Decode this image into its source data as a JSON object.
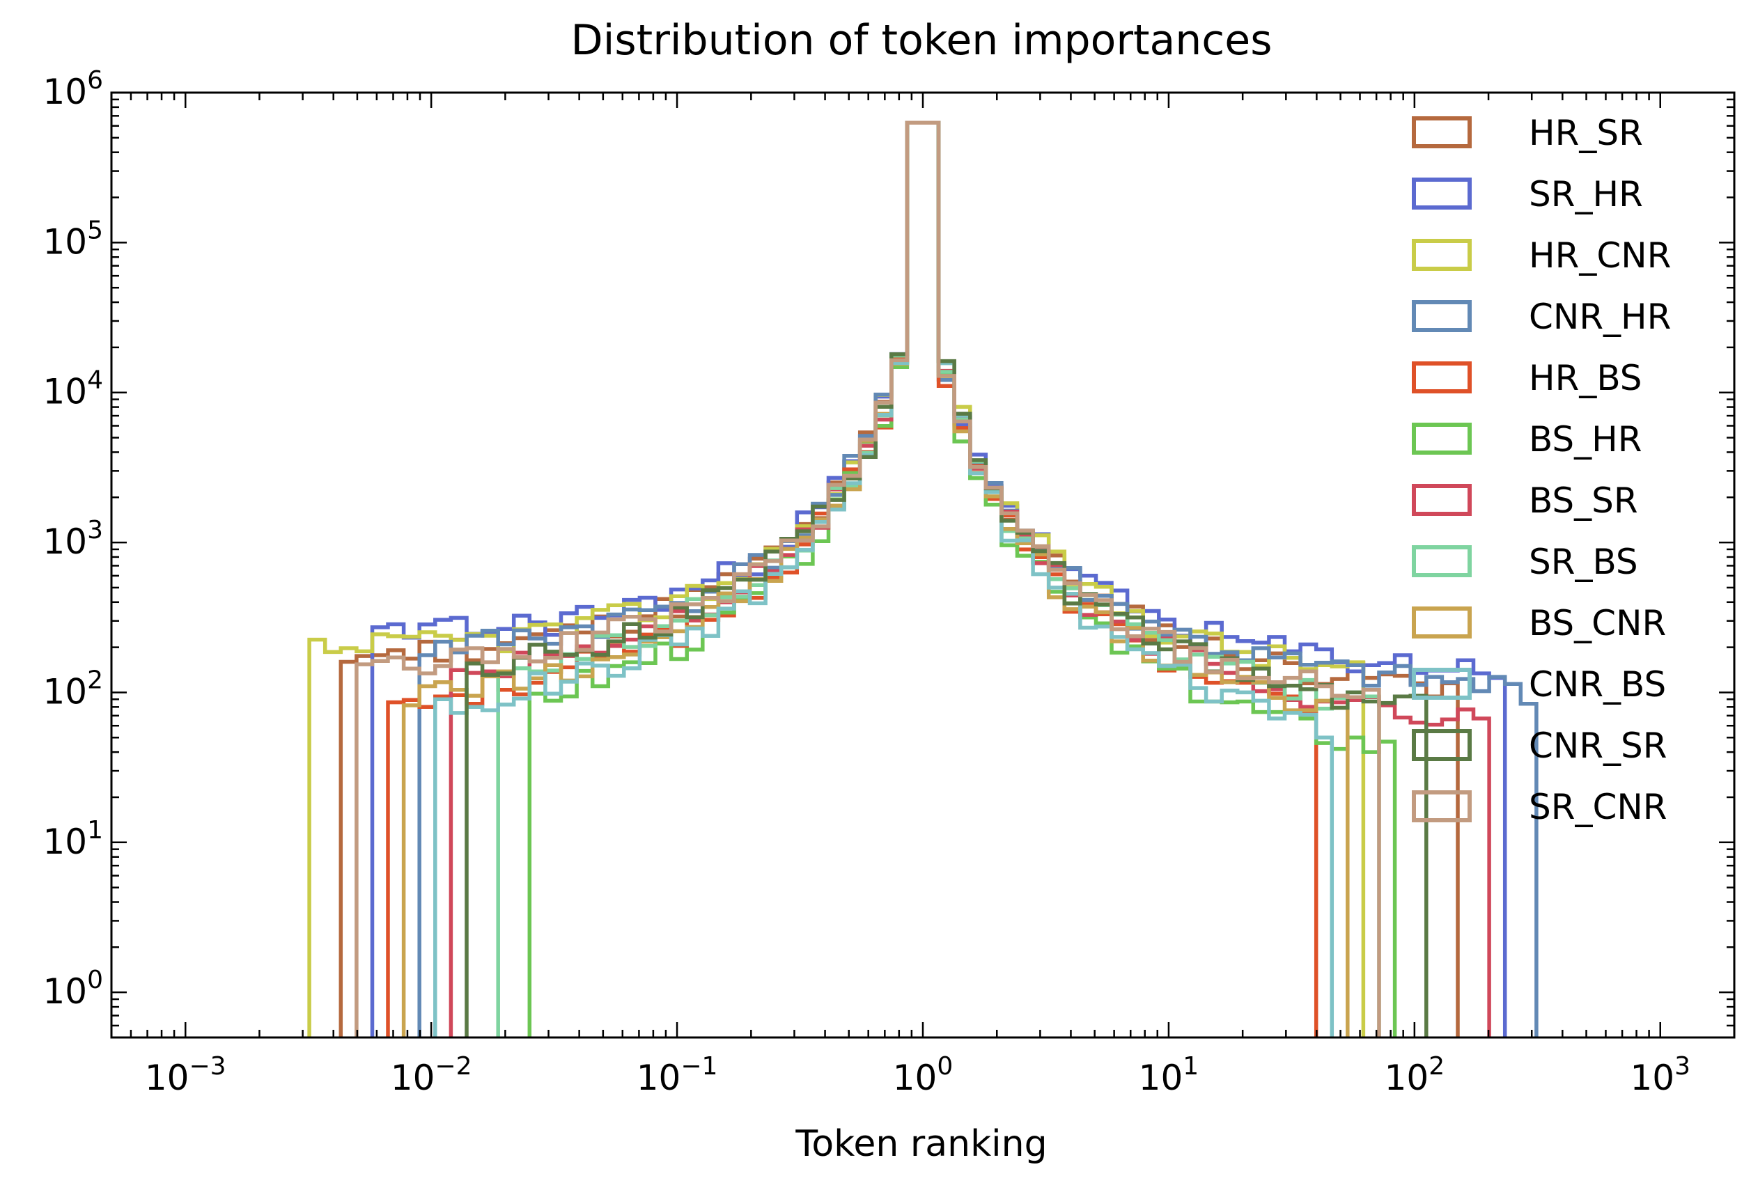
{
  "chart_data": {
    "type": "histogram-step",
    "title": "Distribution of token importances",
    "xlabel": "Token ranking",
    "ylabel": "",
    "xscale": "log",
    "yscale": "log",
    "xlim": [
      0.0005,
      2000
    ],
    "ylim": [
      0.5,
      1000000
    ],
    "x_ticks": [
      {
        "value": 0.001,
        "base": "10",
        "exp": "−3"
      },
      {
        "value": 0.01,
        "base": "10",
        "exp": "−2"
      },
      {
        "value": 0.1,
        "base": "10",
        "exp": "−1"
      },
      {
        "value": 1,
        "base": "10",
        "exp": "0"
      },
      {
        "value": 10,
        "base": "10",
        "exp": "1"
      },
      {
        "value": 100,
        "base": "10",
        "exp": "2"
      },
      {
        "value": 1000,
        "base": "10",
        "exp": "3"
      }
    ],
    "y_ticks": [
      {
        "value": 1,
        "base": "10",
        "exp": "0"
      },
      {
        "value": 10,
        "base": "10",
        "exp": "1"
      },
      {
        "value": 100,
        "base": "10",
        "exp": "2"
      },
      {
        "value": 1000,
        "base": "10",
        "exp": "3"
      },
      {
        "value": 10000,
        "base": "10",
        "exp": "4"
      },
      {
        "value": 100000,
        "base": "10",
        "exp": "5"
      },
      {
        "value": 1000000,
        "base": "10",
        "exp": "6"
      }
    ],
    "legend_position": "upper right",
    "grid": false,
    "series": [
      {
        "name": "HR_SR",
        "color": "#b5693e",
        "spread": 0.92,
        "left_min": 0.0045,
        "right_max": 150,
        "seed": 11
      },
      {
        "name": "SR_HR",
        "color": "#5b6ad0",
        "spread": 1.0,
        "left_min": 0.006,
        "right_max": 220,
        "seed": 23
      },
      {
        "name": "HR_CNR",
        "color": "#c9cc48",
        "spread": 0.95,
        "left_min": 0.003,
        "right_max": 60,
        "seed": 37
      },
      {
        "name": "CNR_HR",
        "color": "#6289b5",
        "spread": 0.93,
        "left_min": 0.009,
        "right_max": 330,
        "seed": 41
      },
      {
        "name": "HR_BS",
        "color": "#df5128",
        "spread": 0.7,
        "left_min": 0.007,
        "right_max": 40,
        "seed": 53
      },
      {
        "name": "BS_HR",
        "color": "#6cc653",
        "spread": 0.6,
        "left_min": 0.025,
        "right_max": 80,
        "seed": 67
      },
      {
        "name": "BS_SR",
        "color": "#d0485a",
        "spread": 0.78,
        "left_min": 0.012,
        "right_max": 200,
        "seed": 71
      },
      {
        "name": "SR_BS",
        "color": "#7fd4a0",
        "spread": 0.8,
        "left_min": 0.02,
        "right_max": 70,
        "seed": 83
      },
      {
        "name": "BS_CNR",
        "color": "#c9a44f",
        "spread": 0.72,
        "left_min": 0.008,
        "right_max": 55,
        "seed": 97
      },
      {
        "name": "CNR_BS",
        "color": "#7ec2c6",
        "spread": 0.65,
        "left_min": 0.01,
        "right_max": 45,
        "seed": 101
      },
      {
        "name": "CNR_SR",
        "color": "#5a7a45",
        "spread": 0.82,
        "left_min": 0.013,
        "right_max": 110,
        "seed": 113
      },
      {
        "name": "SR_CNR",
        "color": "#c29b80",
        "spread": 0.85,
        "left_min": 0.005,
        "right_max": 75,
        "seed": 127
      }
    ]
  }
}
